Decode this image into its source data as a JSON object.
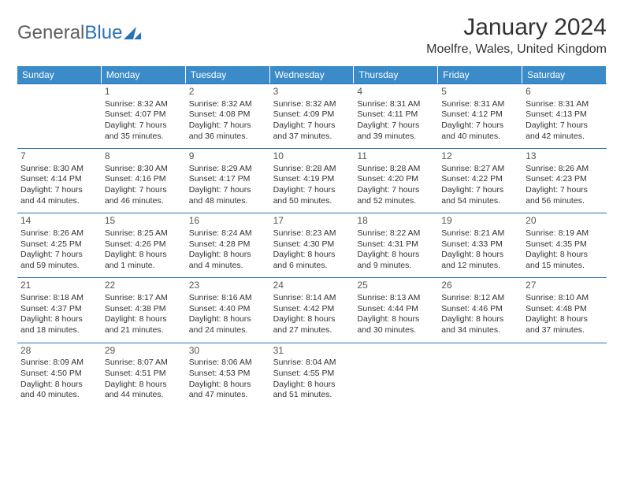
{
  "logo": {
    "text1": "General",
    "text2": "Blue"
  },
  "title": "January 2024",
  "location": "Moelfre, Wales, United Kingdom",
  "colors": {
    "headerBg": "#3b8bc9",
    "border": "#2a72b5",
    "text": "#333333",
    "logoGray": "#5f5f5f",
    "logoBlue": "#2a72b5"
  },
  "dayNames": [
    "Sunday",
    "Monday",
    "Tuesday",
    "Wednesday",
    "Thursday",
    "Friday",
    "Saturday"
  ],
  "weeks": [
    [
      {
        "empty": true
      },
      {
        "day": "1",
        "sunrise": "Sunrise: 8:32 AM",
        "sunset": "Sunset: 4:07 PM",
        "daylight1": "Daylight: 7 hours",
        "daylight2": "and 35 minutes."
      },
      {
        "day": "2",
        "sunrise": "Sunrise: 8:32 AM",
        "sunset": "Sunset: 4:08 PM",
        "daylight1": "Daylight: 7 hours",
        "daylight2": "and 36 minutes."
      },
      {
        "day": "3",
        "sunrise": "Sunrise: 8:32 AM",
        "sunset": "Sunset: 4:09 PM",
        "daylight1": "Daylight: 7 hours",
        "daylight2": "and 37 minutes."
      },
      {
        "day": "4",
        "sunrise": "Sunrise: 8:31 AM",
        "sunset": "Sunset: 4:11 PM",
        "daylight1": "Daylight: 7 hours",
        "daylight2": "and 39 minutes."
      },
      {
        "day": "5",
        "sunrise": "Sunrise: 8:31 AM",
        "sunset": "Sunset: 4:12 PM",
        "daylight1": "Daylight: 7 hours",
        "daylight2": "and 40 minutes."
      },
      {
        "day": "6",
        "sunrise": "Sunrise: 8:31 AM",
        "sunset": "Sunset: 4:13 PM",
        "daylight1": "Daylight: 7 hours",
        "daylight2": "and 42 minutes."
      }
    ],
    [
      {
        "day": "7",
        "sunrise": "Sunrise: 8:30 AM",
        "sunset": "Sunset: 4:14 PM",
        "daylight1": "Daylight: 7 hours",
        "daylight2": "and 44 minutes."
      },
      {
        "day": "8",
        "sunrise": "Sunrise: 8:30 AM",
        "sunset": "Sunset: 4:16 PM",
        "daylight1": "Daylight: 7 hours",
        "daylight2": "and 46 minutes."
      },
      {
        "day": "9",
        "sunrise": "Sunrise: 8:29 AM",
        "sunset": "Sunset: 4:17 PM",
        "daylight1": "Daylight: 7 hours",
        "daylight2": "and 48 minutes."
      },
      {
        "day": "10",
        "sunrise": "Sunrise: 8:28 AM",
        "sunset": "Sunset: 4:19 PM",
        "daylight1": "Daylight: 7 hours",
        "daylight2": "and 50 minutes."
      },
      {
        "day": "11",
        "sunrise": "Sunrise: 8:28 AM",
        "sunset": "Sunset: 4:20 PM",
        "daylight1": "Daylight: 7 hours",
        "daylight2": "and 52 minutes."
      },
      {
        "day": "12",
        "sunrise": "Sunrise: 8:27 AM",
        "sunset": "Sunset: 4:22 PM",
        "daylight1": "Daylight: 7 hours",
        "daylight2": "and 54 minutes."
      },
      {
        "day": "13",
        "sunrise": "Sunrise: 8:26 AM",
        "sunset": "Sunset: 4:23 PM",
        "daylight1": "Daylight: 7 hours",
        "daylight2": "and 56 minutes."
      }
    ],
    [
      {
        "day": "14",
        "sunrise": "Sunrise: 8:26 AM",
        "sunset": "Sunset: 4:25 PM",
        "daylight1": "Daylight: 7 hours",
        "daylight2": "and 59 minutes."
      },
      {
        "day": "15",
        "sunrise": "Sunrise: 8:25 AM",
        "sunset": "Sunset: 4:26 PM",
        "daylight1": "Daylight: 8 hours",
        "daylight2": "and 1 minute."
      },
      {
        "day": "16",
        "sunrise": "Sunrise: 8:24 AM",
        "sunset": "Sunset: 4:28 PM",
        "daylight1": "Daylight: 8 hours",
        "daylight2": "and 4 minutes."
      },
      {
        "day": "17",
        "sunrise": "Sunrise: 8:23 AM",
        "sunset": "Sunset: 4:30 PM",
        "daylight1": "Daylight: 8 hours",
        "daylight2": "and 6 minutes."
      },
      {
        "day": "18",
        "sunrise": "Sunrise: 8:22 AM",
        "sunset": "Sunset: 4:31 PM",
        "daylight1": "Daylight: 8 hours",
        "daylight2": "and 9 minutes."
      },
      {
        "day": "19",
        "sunrise": "Sunrise: 8:21 AM",
        "sunset": "Sunset: 4:33 PM",
        "daylight1": "Daylight: 8 hours",
        "daylight2": "and 12 minutes."
      },
      {
        "day": "20",
        "sunrise": "Sunrise: 8:19 AM",
        "sunset": "Sunset: 4:35 PM",
        "daylight1": "Daylight: 8 hours",
        "daylight2": "and 15 minutes."
      }
    ],
    [
      {
        "day": "21",
        "sunrise": "Sunrise: 8:18 AM",
        "sunset": "Sunset: 4:37 PM",
        "daylight1": "Daylight: 8 hours",
        "daylight2": "and 18 minutes."
      },
      {
        "day": "22",
        "sunrise": "Sunrise: 8:17 AM",
        "sunset": "Sunset: 4:38 PM",
        "daylight1": "Daylight: 8 hours",
        "daylight2": "and 21 minutes."
      },
      {
        "day": "23",
        "sunrise": "Sunrise: 8:16 AM",
        "sunset": "Sunset: 4:40 PM",
        "daylight1": "Daylight: 8 hours",
        "daylight2": "and 24 minutes."
      },
      {
        "day": "24",
        "sunrise": "Sunrise: 8:14 AM",
        "sunset": "Sunset: 4:42 PM",
        "daylight1": "Daylight: 8 hours",
        "daylight2": "and 27 minutes."
      },
      {
        "day": "25",
        "sunrise": "Sunrise: 8:13 AM",
        "sunset": "Sunset: 4:44 PM",
        "daylight1": "Daylight: 8 hours",
        "daylight2": "and 30 minutes."
      },
      {
        "day": "26",
        "sunrise": "Sunrise: 8:12 AM",
        "sunset": "Sunset: 4:46 PM",
        "daylight1": "Daylight: 8 hours",
        "daylight2": "and 34 minutes."
      },
      {
        "day": "27",
        "sunrise": "Sunrise: 8:10 AM",
        "sunset": "Sunset: 4:48 PM",
        "daylight1": "Daylight: 8 hours",
        "daylight2": "and 37 minutes."
      }
    ],
    [
      {
        "day": "28",
        "sunrise": "Sunrise: 8:09 AM",
        "sunset": "Sunset: 4:50 PM",
        "daylight1": "Daylight: 8 hours",
        "daylight2": "and 40 minutes."
      },
      {
        "day": "29",
        "sunrise": "Sunrise: 8:07 AM",
        "sunset": "Sunset: 4:51 PM",
        "daylight1": "Daylight: 8 hours",
        "daylight2": "and 44 minutes."
      },
      {
        "day": "30",
        "sunrise": "Sunrise: 8:06 AM",
        "sunset": "Sunset: 4:53 PM",
        "daylight1": "Daylight: 8 hours",
        "daylight2": "and 47 minutes."
      },
      {
        "day": "31",
        "sunrise": "Sunrise: 8:04 AM",
        "sunset": "Sunset: 4:55 PM",
        "daylight1": "Daylight: 8 hours",
        "daylight2": "and 51 minutes."
      },
      {
        "empty": true
      },
      {
        "empty": true
      },
      {
        "empty": true
      }
    ]
  ]
}
